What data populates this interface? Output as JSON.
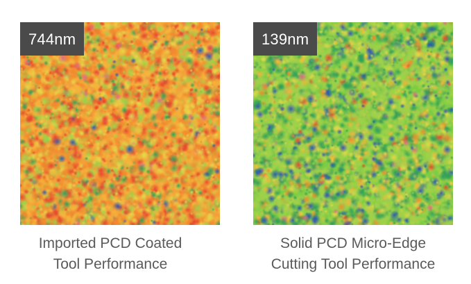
{
  "panels": [
    {
      "roughness_label": "744nm",
      "caption_line1": "Imported PCD Coated",
      "caption_line2": "Tool Performance",
      "colormap_dominant": "#f2a13a",
      "colormap_palette": [
        "#e8452f",
        "#f28a2e",
        "#f5b63b",
        "#e6d84a",
        "#9fd24a",
        "#2f9f5a",
        "#2c55b4",
        "#e06a8a"
      ]
    },
    {
      "roughness_label": "139nm",
      "caption_line1": "Solid PCD Micro-Edge",
      "caption_line2": "Cutting Tool Performance",
      "colormap_dominant": "#7ccc44",
      "colormap_palette": [
        "#e8452f",
        "#f28a2e",
        "#f5b63b",
        "#e6d84a",
        "#9fd24a",
        "#2f9f5a",
        "#2c55b4",
        "#e06a8a"
      ]
    }
  ]
}
